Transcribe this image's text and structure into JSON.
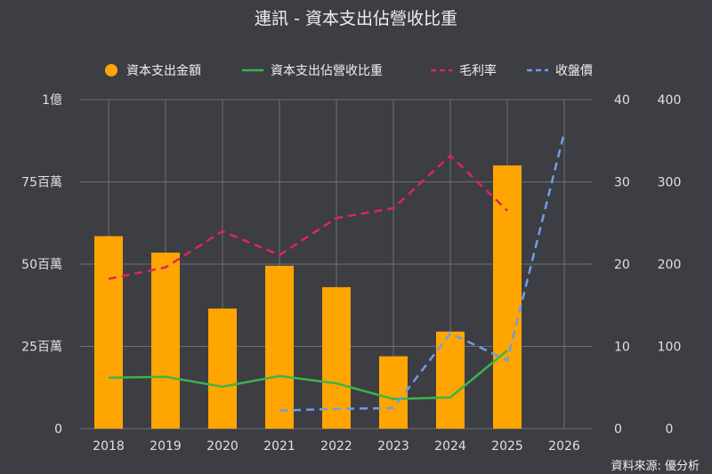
{
  "chart_data": {
    "type": "bar",
    "title": "連訊 - 資本支出佔營收比重",
    "source": "資料來源: 優分析",
    "categories": [
      "2018",
      "2019",
      "2020",
      "2021",
      "2022",
      "2023",
      "2024",
      "2025",
      "2026"
    ],
    "legend_position": "top",
    "grid": true,
    "axes": {
      "left": {
        "ticks": [
          "0",
          "25百萬",
          "50百萬",
          "75百萬",
          "1億"
        ],
        "range": [
          0,
          100000000
        ]
      },
      "right1": {
        "ticks": [
          "0",
          "10",
          "20",
          "30",
          "40"
        ],
        "range": [
          0,
          40
        ]
      },
      "right2": {
        "ticks": [
          "0",
          "100",
          "200",
          "300",
          "400"
        ],
        "range": [
          0,
          400
        ]
      }
    },
    "series": [
      {
        "name": "資本支出金額",
        "kind": "bar",
        "axis": "left",
        "color": "#ffa500",
        "values": [
          58500000,
          53500000,
          36500000,
          49500000,
          43000000,
          22000000,
          29500000,
          80000000,
          null
        ]
      },
      {
        "name": "資本支出佔營收比重",
        "kind": "line",
        "axis": "right1",
        "color": "#3cb44b",
        "dash": "solid",
        "values": [
          6.2,
          6.3,
          5.1,
          6.4,
          5.5,
          3.6,
          3.8,
          9.5,
          null
        ]
      },
      {
        "name": "毛利率",
        "kind": "line",
        "axis": "right1",
        "color": "#e0245e",
        "dash": "dashed",
        "values": [
          18.2,
          19.6,
          24.0,
          21.1,
          25.6,
          26.8,
          33.2,
          26.5,
          null
        ]
      },
      {
        "name": "收盤價",
        "kind": "line",
        "axis": "right2",
        "color": "#6f9de8",
        "dash": "dashed",
        "values": [
          null,
          null,
          null,
          22,
          24,
          25,
          116,
          83,
          360
        ]
      }
    ]
  }
}
